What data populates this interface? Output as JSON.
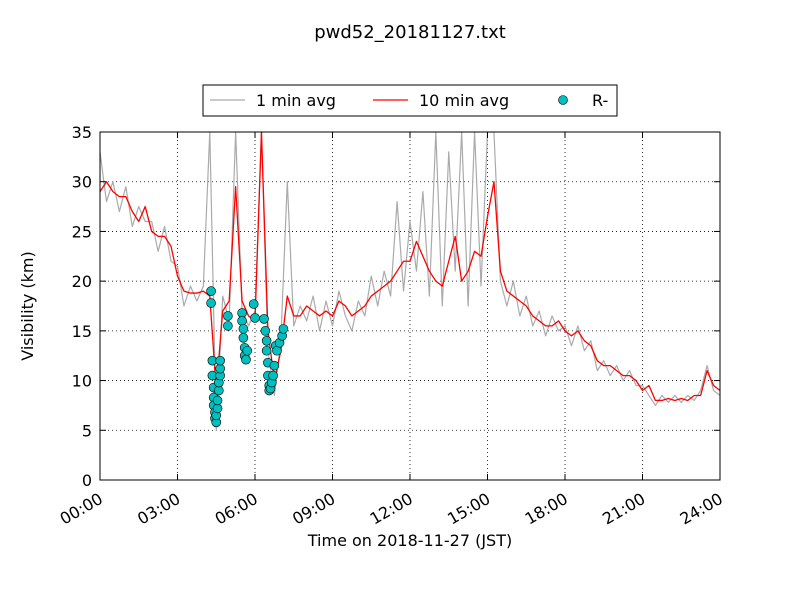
{
  "chart_data": {
    "type": "line",
    "title": "pwd52_20181127.txt",
    "x_label": "Time on 2018-11-27 (JST)",
    "y_label": "Visibility (km)",
    "x": [
      0,
      0.25,
      0.5,
      0.75,
      1,
      1.25,
      1.5,
      1.75,
      2,
      2.25,
      2.5,
      2.75,
      3,
      3.25,
      3.5,
      3.75,
      4,
      4.25,
      4.5,
      4.75,
      5,
      5.25,
      5.5,
      5.75,
      6,
      6.25,
      6.5,
      6.75,
      7,
      7.25,
      7.5,
      7.75,
      8,
      8.25,
      8.5,
      8.75,
      9,
      9.25,
      9.5,
      9.75,
      10,
      10.25,
      10.5,
      10.75,
      11,
      11.25,
      11.5,
      11.75,
      12,
      12.25,
      12.5,
      12.75,
      13,
      13.25,
      13.5,
      13.75,
      14,
      14.25,
      14.5,
      14.75,
      15,
      15.25,
      15.5,
      15.75,
      16,
      16.25,
      16.5,
      16.75,
      17,
      17.25,
      17.5,
      17.75,
      18,
      18.25,
      18.5,
      18.75,
      19,
      19.25,
      19.5,
      19.75,
      20,
      20.25,
      20.5,
      20.75,
      21,
      21.25,
      21.5,
      21.75,
      22,
      22.25,
      22.5,
      22.75,
      23,
      23.25,
      23.5,
      23.75,
      24
    ],
    "series": [
      {
        "name": "1 min avg",
        "type": "line",
        "color": "#aaaaaa",
        "values": [
          33,
          28,
          30,
          27,
          29.5,
          25.5,
          27.5,
          26,
          26,
          23,
          25.5,
          22,
          21.5,
          17.5,
          19.5,
          18,
          19.5,
          35,
          5,
          18.5,
          16,
          35,
          17,
          15.5,
          17,
          35,
          13,
          8.5,
          14,
          30,
          15.5,
          17.5,
          16,
          18.5,
          15,
          18,
          15.5,
          19,
          16.5,
          15,
          18,
          16.5,
          20.5,
          17.5,
          21,
          18.5,
          28,
          19,
          26,
          21,
          29,
          18.5,
          35,
          17.5,
          33,
          21,
          35,
          17.5,
          35,
          19.5,
          35,
          35,
          20,
          17.5,
          20,
          16.5,
          18.5,
          15.5,
          17,
          14.5,
          16.5,
          15,
          15.5,
          13.5,
          15.5,
          13,
          14,
          11,
          12,
          10.5,
          11.5,
          10,
          11,
          9.5,
          9.5,
          8.5,
          7.5,
          8.5,
          7.8,
          8.5,
          7.8,
          8.5,
          8,
          9,
          11.5,
          9,
          8.5
        ]
      },
      {
        "name": "10 min avg",
        "type": "line",
        "color": "#ff0000",
        "values": [
          29,
          30,
          29,
          28.5,
          28.5,
          27,
          26,
          27.5,
          25,
          24.5,
          24.5,
          23.5,
          20.5,
          19,
          18.8,
          18.8,
          19,
          18.5,
          9,
          17,
          18,
          29.5,
          18,
          16.5,
          16,
          35,
          15,
          10,
          13,
          18.5,
          16.5,
          16.5,
          17.5,
          17,
          16.5,
          17,
          16.5,
          18,
          17.5,
          16.5,
          17,
          17.5,
          18.5,
          19,
          19.5,
          20,
          21,
          22,
          22,
          24,
          22.5,
          21,
          20,
          19.5,
          22,
          24.5,
          20,
          21,
          23,
          22.5,
          26.5,
          30,
          21,
          19,
          18.5,
          18,
          17.5,
          16.5,
          16,
          15.5,
          15.5,
          16,
          15,
          14.5,
          15,
          14,
          13.5,
          12,
          11.5,
          11.5,
          11,
          10.5,
          10.5,
          10,
          9,
          9.5,
          8,
          8,
          8.2,
          8,
          8.2,
          8,
          8.5,
          8.5,
          11,
          9.5,
          9
        ]
      },
      {
        "name": "R-",
        "type": "scatter",
        "color": "#00bfbf",
        "x": [
          4.3,
          4.3,
          4.35,
          4.35,
          4.4,
          4.4,
          4.4,
          4.45,
          4.45,
          4.5,
          4.5,
          4.55,
          4.55,
          4.6,
          4.6,
          4.65,
          4.65,
          4.65,
          4.95,
          4.95,
          5.5,
          5.5,
          5.55,
          5.55,
          5.6,
          5.6,
          5.65,
          5.7,
          5.95,
          6.0,
          6.35,
          6.4,
          6.45,
          6.45,
          6.5,
          6.5,
          6.55,
          6.55,
          6.6,
          6.65,
          6.7,
          6.75,
          6.8,
          6.85,
          6.95,
          7.05,
          7.1
        ],
        "values": [
          19,
          17.8,
          12,
          10.5,
          9.3,
          8.3,
          7.5,
          6.8,
          6.2,
          5.8,
          6.5,
          7.2,
          8,
          9,
          9.8,
          10.5,
          11.2,
          12,
          15.5,
          16.5,
          16.8,
          16,
          15.2,
          14.3,
          13.3,
          12.5,
          12.1,
          13,
          17.7,
          16.3,
          16.2,
          15,
          14,
          13,
          11.8,
          10.5,
          9.5,
          9,
          9.2,
          9.8,
          10.5,
          11.5,
          13.5,
          13,
          13.8,
          14.5,
          15.2
        ]
      }
    ],
    "xlim": [
      0,
      24
    ],
    "xticks": [
      {
        "value": 0,
        "label": "00:00"
      },
      {
        "value": 3,
        "label": "03:00"
      },
      {
        "value": 6,
        "label": "06:00"
      },
      {
        "value": 9,
        "label": "09:00"
      },
      {
        "value": 12,
        "label": "12:00"
      },
      {
        "value": 15,
        "label": "15:00"
      },
      {
        "value": 18,
        "label": "18:00"
      },
      {
        "value": 21,
        "label": "21:00"
      },
      {
        "value": 24,
        "label": "24:00"
      }
    ],
    "ylim": [
      0,
      35
    ],
    "yticks": [
      0,
      5,
      10,
      15,
      20,
      25,
      30,
      35
    ],
    "grid": true,
    "legend": "top"
  }
}
